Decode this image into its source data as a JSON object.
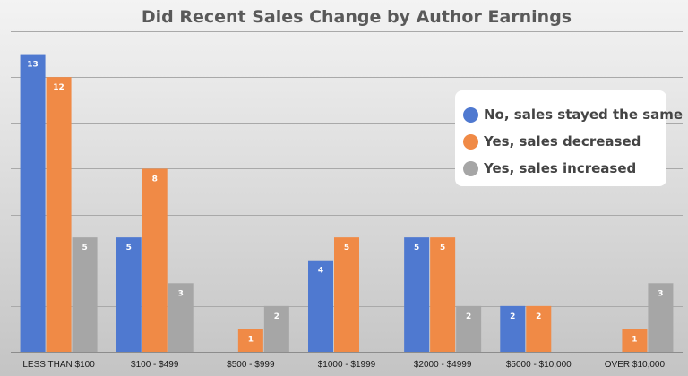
{
  "chart_data": {
    "type": "bar",
    "title": "Did Recent Sales Change by Author Earnings",
    "xlabel": "",
    "ylabel": "",
    "categories": [
      "LESS THAN $100",
      "$100 - $499",
      "$500 - $999",
      "$1000 - $1999",
      "$2000 - $4999",
      "$5000 - $10,000",
      "OVER $10,000"
    ],
    "series": [
      {
        "name": "No, sales stayed the same",
        "color": "#4f79d0",
        "values": [
          13,
          5,
          0,
          4,
          5,
          2,
          0
        ]
      },
      {
        "name": "Yes, sales decreased",
        "color": "#f08a46",
        "values": [
          12,
          8,
          1,
          5,
          5,
          2,
          1
        ]
      },
      {
        "name": "Yes, sales increased",
        "color": "#a6a6a6",
        "values": [
          5,
          3,
          2,
          null,
          2,
          null,
          3
        ]
      }
    ],
    "ylim": [
      0,
      14
    ],
    "grid": true,
    "legend_position": "right"
  }
}
